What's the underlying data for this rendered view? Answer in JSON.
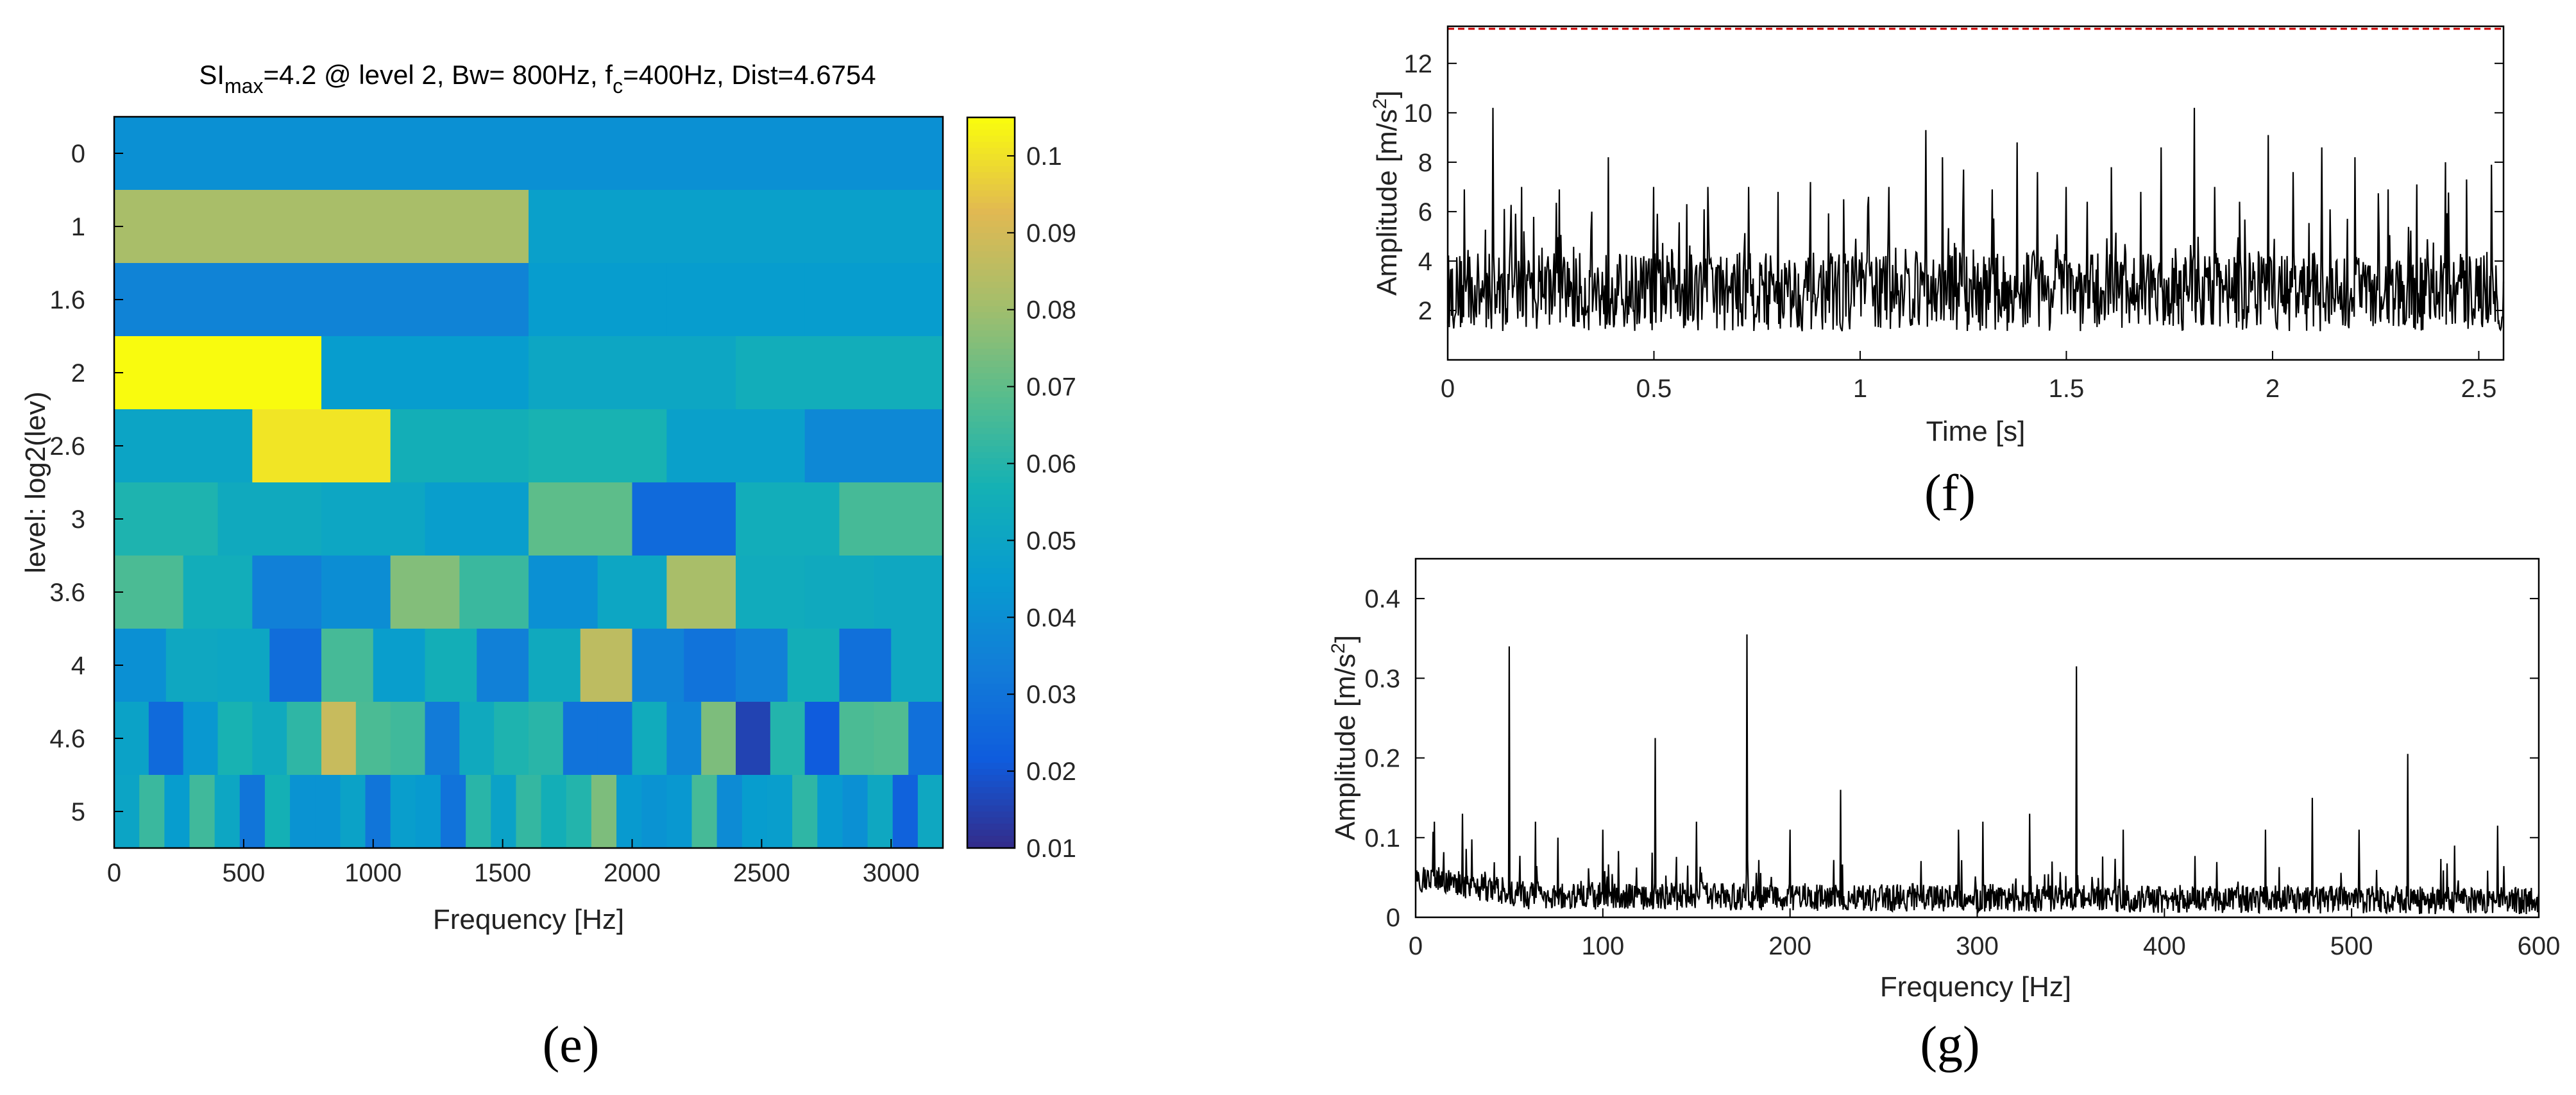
{
  "panels": {
    "e": {
      "label": "(e)"
    },
    "f": {
      "label": "(f)"
    },
    "g": {
      "label": "(g)"
    }
  },
  "chart_data": [
    {
      "id": "e",
      "type": "heatmap",
      "title": {
        "part1": "SI",
        "sub1": "max",
        "part2": "=4.2 @ level 2, Bw= 800Hz, f",
        "sub2": "c",
        "part3": "=400Hz, Dist=4.6754"
      },
      "xlabel": "Frequency [Hz]",
      "ylabel": "level: log2(lev)",
      "xlim": [
        0,
        3200
      ],
      "xticks": [
        "0",
        "500",
        "1000",
        "1500",
        "2000",
        "2500",
        "3000"
      ],
      "xtick_values": [
        0,
        500,
        1000,
        1500,
        2000,
        2500,
        3000
      ],
      "rows": [
        {
          "label": "0",
          "values": [
            0.041
          ]
        },
        {
          "label": "1",
          "values": [
            0.082,
            0.048
          ]
        },
        {
          "label": "1.6",
          "values": [
            0.036,
            0.036,
            0.036,
            0.046,
            0.046,
            0.046
          ]
        },
        {
          "label": "2",
          "values": [
            0.105,
            0.046,
            0.051,
            0.055
          ]
        },
        {
          "label": "2.6",
          "values": [
            0.05,
            0.101,
            0.056,
            0.058,
            0.048,
            0.038
          ]
        },
        {
          "label": "3",
          "values": [
            0.059,
            0.053,
            0.051,
            0.047,
            0.07,
            0.027,
            0.055,
            0.066
          ]
        },
        {
          "label": "3.6",
          "values": [
            0.067,
            0.055,
            0.035,
            0.04,
            0.076,
            0.064,
            0.041,
            0.051,
            0.082,
            0.054,
            0.053,
            0.052
          ]
        },
        {
          "label": "4",
          "values": [
            0.041,
            0.052,
            0.051,
            0.028,
            0.066,
            0.047,
            0.056,
            0.035,
            0.053,
            0.086,
            0.036,
            0.03,
            0.035,
            0.056,
            0.029,
            0.052
          ]
        },
        {
          "label": "4.6",
          "values": [
            0.049,
            0.027,
            0.044,
            0.058,
            0.053,
            0.062,
            0.088,
            0.067,
            0.065,
            0.033,
            0.053,
            0.059,
            0.061,
            0.03,
            0.03,
            0.054,
            0.037,
            0.075,
            0.016,
            0.06,
            0.022,
            0.067,
            0.068,
            0.029
          ]
        },
        {
          "label": "5",
          "values": [
            0.05,
            0.064,
            0.046,
            0.065,
            0.051,
            0.031,
            0.057,
            0.042,
            0.042,
            0.049,
            0.031,
            0.047,
            0.045,
            0.03,
            0.061,
            0.049,
            0.063,
            0.056,
            0.06,
            0.075,
            0.045,
            0.042,
            0.044,
            0.066,
            0.039,
            0.046,
            0.047,
            0.062,
            0.045,
            0.041,
            0.052,
            0.024,
            0.052
          ]
        }
      ],
      "colorbar": {
        "ticks": [
          "0.01",
          "0.02",
          "0.03",
          "0.04",
          "0.05",
          "0.06",
          "0.07",
          "0.08",
          "0.09",
          "0.1"
        ],
        "min": 0.01,
        "max": 0.105,
        "colormap": "parula"
      }
    },
    {
      "id": "f",
      "type": "line",
      "xlabel": "Time [s]",
      "ylabel": {
        "text": "Amplitude [m/s",
        "sup": "2",
        "end": "]"
      },
      "xlim": [
        0,
        2.56
      ],
      "ylim": [
        0,
        13.5
      ],
      "xticks": [
        "0",
        "0.5",
        "1",
        "1.5",
        "2",
        "2.5"
      ],
      "xtick_values": [
        0,
        0.5,
        1,
        1.5,
        2,
        2.5
      ],
      "yticks": [
        "2",
        "4",
        "6",
        "8",
        "10",
        "12"
      ],
      "ytick_values": [
        2,
        4,
        6,
        8,
        10,
        12
      ],
      "threshold_line": {
        "y": 13.4,
        "color": "#cc0000"
      },
      "series_color": "#000000",
      "noise": {
        "baseline": 2.6,
        "spread": 1.6,
        "min": 0.4
      },
      "peaks": [
        [
          0.04,
          6.9
        ],
        [
          0.11,
          10.2
        ],
        [
          0.18,
          7.0
        ],
        [
          0.27,
          6.9
        ],
        [
          0.35,
          6.0
        ],
        [
          0.39,
          8.2
        ],
        [
          0.5,
          7.0
        ],
        [
          0.58,
          6.3
        ],
        [
          0.63,
          7.0
        ],
        [
          0.73,
          7.0
        ],
        [
          0.8,
          6.8
        ],
        [
          0.88,
          7.2
        ],
        [
          0.96,
          6.5
        ],
        [
          1.02,
          6.6
        ],
        [
          1.07,
          7.0
        ],
        [
          1.16,
          9.3
        ],
        [
          1.2,
          8.2
        ],
        [
          1.25,
          7.7
        ],
        [
          1.32,
          6.9
        ],
        [
          1.38,
          8.8
        ],
        [
          1.43,
          7.6
        ],
        [
          1.5,
          7.0
        ],
        [
          1.55,
          6.4
        ],
        [
          1.61,
          7.8
        ],
        [
          1.68,
          6.8
        ],
        [
          1.73,
          8.6
        ],
        [
          1.81,
          10.2
        ],
        [
          1.86,
          7.0
        ],
        [
          1.92,
          6.4
        ],
        [
          1.99,
          9.1
        ],
        [
          2.05,
          7.6
        ],
        [
          2.12,
          8.6
        ],
        [
          2.2,
          8.2
        ],
        [
          2.28,
          6.9
        ],
        [
          2.35,
          7.1
        ],
        [
          2.42,
          8.0
        ],
        [
          2.47,
          7.3
        ],
        [
          2.53,
          7.9
        ]
      ]
    },
    {
      "id": "g",
      "type": "line",
      "xlabel": "Frequency [Hz]",
      "ylabel": {
        "text": "Amplitude [m/s",
        "sup": "2",
        "end": "]"
      },
      "xlim": [
        0,
        600
      ],
      "ylim": [
        0,
        0.45
      ],
      "xticks": [
        "0",
        "100",
        "200",
        "300",
        "400",
        "500",
        "600"
      ],
      "xtick_values": [
        0,
        100,
        200,
        300,
        400,
        500,
        600
      ],
      "yticks": [
        "0",
        "0.1",
        "0.2",
        "0.3",
        "0.4"
      ],
      "ytick_values": [
        0,
        0.1,
        0.2,
        0.3,
        0.4
      ],
      "series_color": "#000000",
      "peaks": [
        [
          10,
          0.12
        ],
        [
          25,
          0.13
        ],
        [
          50,
          0.34
        ],
        [
          64,
          0.12
        ],
        [
          76,
          0.1
        ],
        [
          100,
          0.11
        ],
        [
          128,
          0.225
        ],
        [
          150,
          0.12
        ],
        [
          177,
          0.355
        ],
        [
          200,
          0.11
        ],
        [
          227,
          0.16
        ],
        [
          290,
          0.11
        ],
        [
          303,
          0.12
        ],
        [
          328,
          0.13
        ],
        [
          340,
          0.07
        ],
        [
          353,
          0.315
        ],
        [
          378,
          0.11
        ],
        [
          454,
          0.11
        ],
        [
          479,
          0.15
        ],
        [
          504,
          0.11
        ],
        [
          530,
          0.205
        ],
        [
          555,
          0.09
        ],
        [
          578,
          0.115
        ]
      ]
    }
  ]
}
